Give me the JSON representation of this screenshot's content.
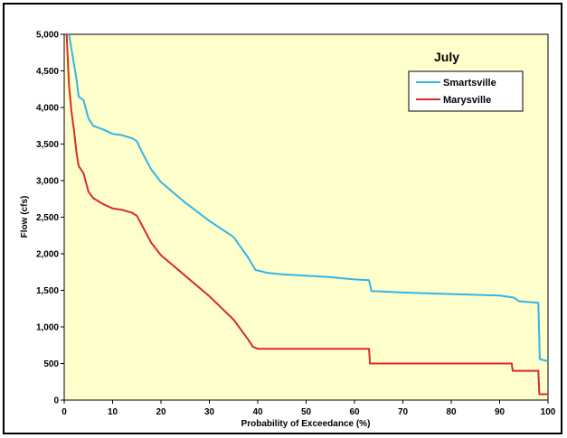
{
  "chart_data": {
    "type": "line",
    "title": "July",
    "xlabel": "Probability of Exceedance (%)",
    "ylabel": "Flow (cfs)",
    "xlim": [
      0,
      100
    ],
    "ylim": [
      0,
      5000
    ],
    "x_ticks": [
      0,
      10,
      20,
      30,
      40,
      50,
      60,
      70,
      80,
      90,
      100
    ],
    "y_ticks": [
      0,
      500,
      1000,
      1500,
      2000,
      2500,
      3000,
      3500,
      4000,
      4500,
      5000
    ],
    "y_tick_labels": [
      "0",
      "500",
      "1,000",
      "1,500",
      "2,000",
      "2,500",
      "3,000",
      "3,500",
      "4,000",
      "4,500",
      "5,000"
    ],
    "grid": false,
    "legend_position": "top-right",
    "plot_background": "#ffffcc",
    "series": [
      {
        "name": "Smartsville",
        "color": "#33b5e5",
        "points": [
          [
            1.0,
            5000
          ],
          [
            1.5,
            4800
          ],
          [
            2.0,
            4600
          ],
          [
            2.5,
            4400
          ],
          [
            3.0,
            4150
          ],
          [
            4.0,
            4100
          ],
          [
            5.0,
            3850
          ],
          [
            6.0,
            3750
          ],
          [
            8.0,
            3700
          ],
          [
            10.0,
            3640
          ],
          [
            12.0,
            3620
          ],
          [
            14.0,
            3580
          ],
          [
            15.0,
            3540
          ],
          [
            16.0,
            3400
          ],
          [
            18.0,
            3150
          ],
          [
            20.0,
            2980
          ],
          [
            25.0,
            2700
          ],
          [
            30.0,
            2450
          ],
          [
            35.0,
            2230
          ],
          [
            38.0,
            1950
          ],
          [
            39.5,
            1780
          ],
          [
            42.0,
            1740
          ],
          [
            45.0,
            1720
          ],
          [
            50.0,
            1700
          ],
          [
            55.0,
            1680
          ],
          [
            60.0,
            1650
          ],
          [
            63.0,
            1640
          ],
          [
            63.5,
            1490
          ],
          [
            70.0,
            1470
          ],
          [
            80.0,
            1450
          ],
          [
            90.0,
            1430
          ],
          [
            93.0,
            1400
          ],
          [
            94.0,
            1350
          ],
          [
            98.0,
            1330
          ],
          [
            98.3,
            560
          ],
          [
            100.0,
            530
          ]
        ]
      },
      {
        "name": "Marysville",
        "color": "#d92b2b",
        "points": [
          [
            0.5,
            5000
          ],
          [
            1.0,
            4300
          ],
          [
            1.5,
            3950
          ],
          [
            2.0,
            3700
          ],
          [
            2.5,
            3400
          ],
          [
            3.0,
            3200
          ],
          [
            4.0,
            3100
          ],
          [
            5.0,
            2850
          ],
          [
            6.0,
            2760
          ],
          [
            8.0,
            2680
          ],
          [
            10.0,
            2620
          ],
          [
            12.0,
            2600
          ],
          [
            14.0,
            2560
          ],
          [
            15.0,
            2520
          ],
          [
            16.0,
            2400
          ],
          [
            18.0,
            2150
          ],
          [
            20.0,
            1980
          ],
          [
            25.0,
            1700
          ],
          [
            30.0,
            1420
          ],
          [
            35.0,
            1100
          ],
          [
            38.0,
            830
          ],
          [
            39.0,
            730
          ],
          [
            40.0,
            700
          ],
          [
            63.0,
            700
          ],
          [
            63.2,
            500
          ],
          [
            92.5,
            500
          ],
          [
            92.7,
            400
          ],
          [
            98.0,
            400
          ],
          [
            98.2,
            80
          ],
          [
            100.0,
            80
          ]
        ]
      }
    ]
  }
}
